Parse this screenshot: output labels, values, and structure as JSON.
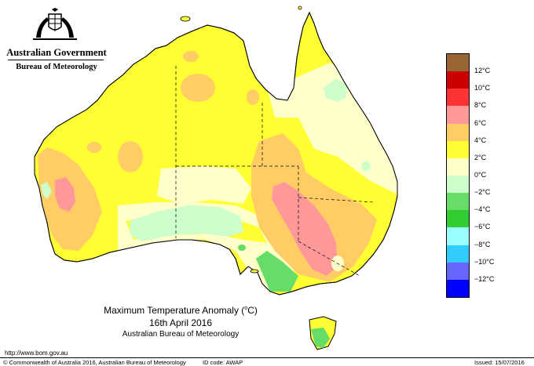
{
  "header": {
    "government": "Australian Government",
    "bureau": "Bureau of Meteorology",
    "crest_icon": "coat-of-arms-icon"
  },
  "map": {
    "region": "Australia",
    "colors": {
      "water": "#ffffff",
      "land_base": "#ffff33",
      "band_0_2": "#ffffcc",
      "band_2_4": "#ffff33",
      "band_4_6": "#ffcc66",
      "band_6_8": "#ff9999",
      "band_m2_0": "#ccffcc",
      "band_m4_m2": "#66dd66",
      "state_border": "#000000"
    }
  },
  "legend": {
    "labels": [
      "12°C",
      "10°C",
      "8°C",
      "6°C",
      "4°C",
      "2°C",
      "0°C",
      "−2°C",
      "−4°C",
      "−6°C",
      "−8°C",
      "−10°C",
      "−12°C"
    ],
    "colors": [
      "#996633",
      "#cc0000",
      "#ff3333",
      "#ff9999",
      "#ffcc66",
      "#ffff33",
      "#ffffcc",
      "#ccffcc",
      "#66dd66",
      "#33cc33",
      "#99ffff",
      "#33ccff",
      "#6666ff",
      "#0000ff"
    ]
  },
  "caption": {
    "title_prefix": "Maximum Temperature Anomaly (",
    "title_unit": "o",
    "title_suffix": "C)",
    "date": "16th April 2016",
    "org": "Australian Bureau of Meteorology"
  },
  "footer": {
    "url": "http://www.bom.gov.au",
    "copyright": "© Commonwealth of Australia 2016, Australian Bureau of Meteorology",
    "id_code": "ID code: AWAP",
    "issued": "Issued: 15/07/2016"
  }
}
